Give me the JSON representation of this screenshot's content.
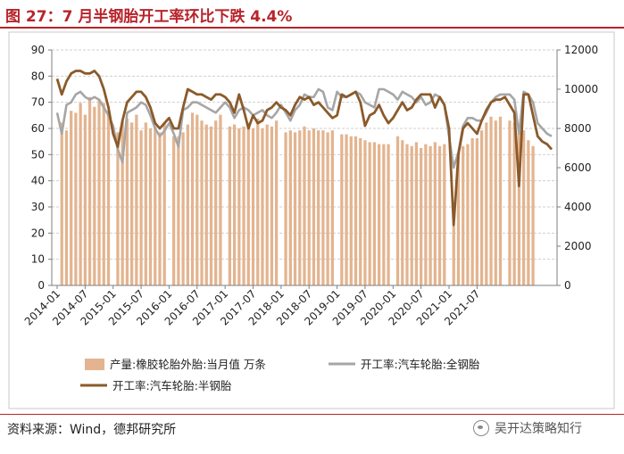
{
  "header": {
    "title": "图 27：7 月半钢胎开工率环比下跌 4.4%"
  },
  "footer": {
    "source": "资料来源：Wind，德邦研究所",
    "watermark": "吴开达策略知行"
  },
  "colors": {
    "accent": "#b8232a",
    "bar": "#e3b48f",
    "all_steel": "#a6a6a6",
    "semi_steel": "#8b5a2b"
  },
  "chart_data": {
    "type": "bar+line",
    "left_axis": {
      "ylim": [
        0,
        90
      ],
      "ticks": [
        "0",
        "10",
        "20",
        "30",
        "40",
        "50",
        "60",
        "70",
        "80",
        "90"
      ]
    },
    "right_axis": {
      "ylim": [
        0,
        12000
      ],
      "ticks": [
        "0",
        "2000",
        "4000",
        "6000",
        "8000",
        "10000",
        "12000"
      ]
    },
    "x_tick_labels": [
      "2014-01",
      "2014-07",
      "2015-01",
      "2015-07",
      "2016-01",
      "2016-07",
      "2017-01",
      "2017-07",
      "2018-01",
      "2018-07",
      "2019-01",
      "2019-07",
      "2020-01",
      "2020-07",
      "2021-01",
      "2021-07"
    ],
    "x_start": "2014-01",
    "legend": [
      {
        "label": "产量:橡胶轮胎外胎:当月值  万条",
        "kind": "bar"
      },
      {
        "label": "开工率:汽车轮胎:全钢胎",
        "kind": "line"
      },
      {
        "label": "开工率:汽车轮胎:半钢胎",
        "kind": "line"
      }
    ],
    "production": [
      null,
      8300,
      7900,
      8900,
      8800,
      9300,
      8700,
      9600,
      9100,
      9500,
      9300,
      8900,
      null,
      7800,
      8400,
      8500,
      8300,
      8700,
      7900,
      8300,
      8000,
      8100,
      7800,
      8300,
      null,
      7600,
      7600,
      7800,
      8200,
      8800,
      8700,
      8400,
      8200,
      8100,
      8400,
      8700,
      null,
      8100,
      8200,
      8000,
      8100,
      8300,
      8000,
      8500,
      8000,
      8200,
      8100,
      8400,
      null,
      7800,
      7900,
      7800,
      7900,
      8100,
      7900,
      8000,
      7900,
      7900,
      7800,
      7900,
      null,
      7700,
      7700,
      7600,
      7600,
      7500,
      7400,
      7300,
      7300,
      7200,
      7200,
      7200,
      null,
      7600,
      7400,
      7200,
      7100,
      7300,
      7000,
      7200,
      7100,
      7300,
      7100,
      7200,
      null,
      3000,
      6600,
      7100,
      7200,
      7500,
      7500,
      7900,
      8300,
      8600,
      8400,
      8600,
      null,
      8400,
      8300,
      8200,
      7900,
      7400,
      7100
    ],
    "all_steel": [
      66,
      58,
      69,
      70,
      73,
      74,
      72,
      71,
      72,
      71,
      68,
      65,
      61,
      52,
      47,
      66,
      67,
      68,
      70,
      69,
      65,
      60,
      57,
      59,
      62,
      58,
      53,
      67,
      68,
      70,
      70,
      69,
      68,
      67,
      66,
      68,
      70,
      68,
      64,
      67,
      68,
      67,
      65,
      66,
      67,
      65,
      64,
      66,
      69,
      66,
      63,
      67,
      69,
      73,
      72,
      72,
      75,
      74,
      68,
      67,
      74,
      72,
      72,
      73,
      74,
      73,
      70,
      69,
      68,
      75,
      75,
      74,
      73,
      71,
      74,
      73,
      72,
      70,
      72,
      69,
      70,
      73,
      72,
      69,
      57,
      45,
      51,
      61,
      64,
      64,
      63,
      63,
      66,
      70,
      72,
      73,
      73,
      73,
      71,
      58,
      74,
      73,
      70,
      62,
      60,
      58,
      57
    ],
    "semi_steel": [
      79,
      73,
      78,
      81,
      82,
      82,
      81,
      81,
      82,
      80,
      75,
      68,
      58,
      53,
      63,
      70,
      72,
      74,
      74,
      72,
      68,
      62,
      60,
      62,
      64,
      60,
      60,
      68,
      75,
      74,
      73,
      73,
      72,
      71,
      73,
      73,
      72,
      70,
      66,
      73,
      67,
      60,
      65,
      62,
      63,
      67,
      68,
      70,
      68,
      67,
      65,
      69,
      72,
      71,
      72,
      69,
      70,
      68,
      66,
      64,
      65,
      73,
      72,
      73,
      74,
      70,
      61,
      65,
      66,
      69,
      65,
      62,
      64,
      67,
      70,
      67,
      68,
      71,
      73,
      73,
      73,
      68,
      72,
      69,
      60,
      23,
      50,
      60,
      62,
      60,
      58,
      63,
      67,
      70,
      71,
      71,
      72,
      69,
      66,
      38,
      73,
      73,
      65,
      57,
      55,
      54,
      52
    ]
  }
}
